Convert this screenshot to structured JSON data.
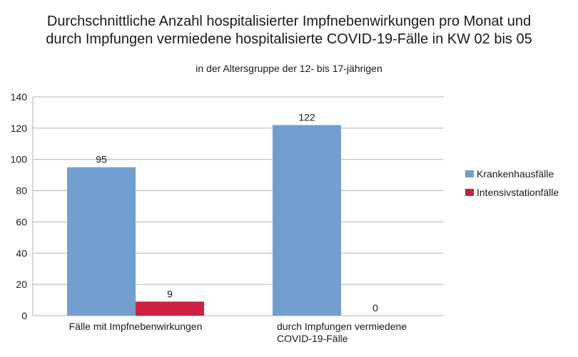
{
  "chart_data": {
    "type": "bar",
    "title_lines": [
      "Durchschnittliche Anzahl hospitalisierter Impfnebenwirkungen pro Monat und",
      "durch Impfungen vermiedene hospitalisierte COVID-19-Fälle in KW 02 bis 05"
    ],
    "subtitle": "in der Altersgruppe der 12- bis 17-jährigen",
    "categories": [
      [
        "Fälle mit Impfnebenwirkungen"
      ],
      [
        "durch Impfungen vermiedene",
        "COVID-19-Fälle"
      ]
    ],
    "series": [
      {
        "name": "Krankenhausfälle",
        "color": "#729fcf",
        "values": [
          95,
          122
        ]
      },
      {
        "name": "Intensivstationfälle",
        "color": "#c9213e",
        "values": [
          9,
          0
        ]
      }
    ],
    "ylim": [
      0,
      140
    ],
    "yticks": [
      "0",
      "20",
      "40",
      "60",
      "80",
      "100",
      "120",
      "140"
    ],
    "grid": true,
    "legend_position": "right"
  }
}
